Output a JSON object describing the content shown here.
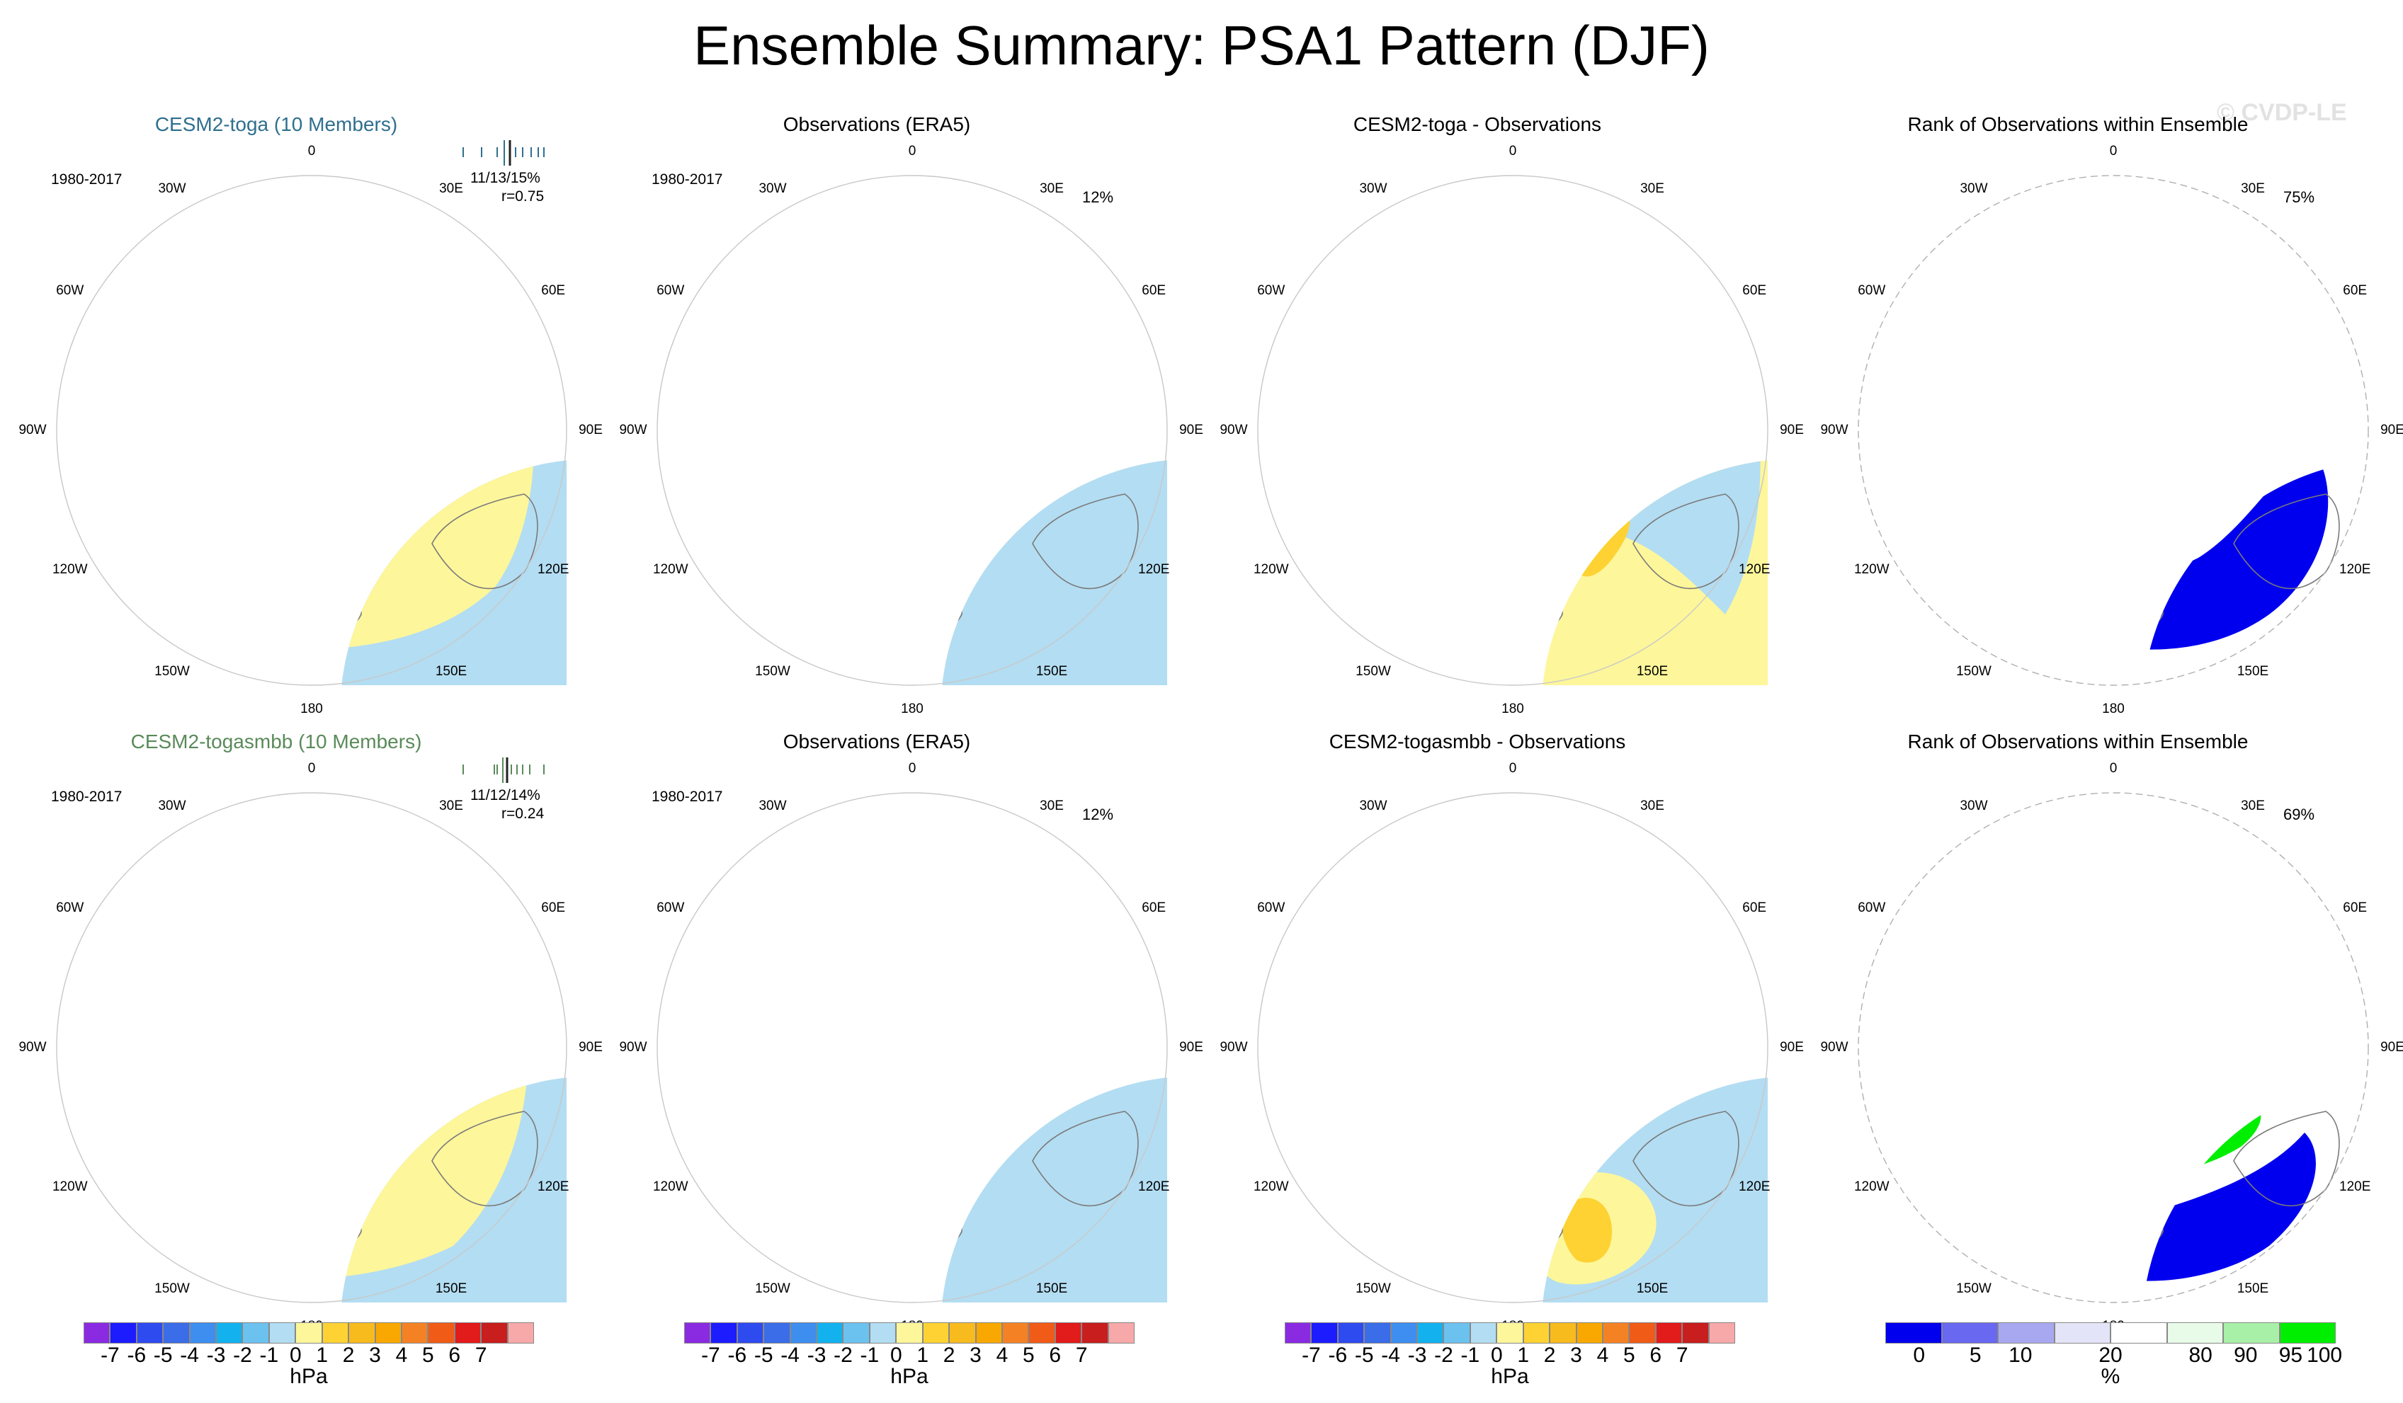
{
  "title": "Ensemble Summary: PSA1 Pattern (DJF)",
  "watermark": "© CVDP-LE",
  "colors": {
    "neg1": "#b3ddf2",
    "neg2": "#6cc2ef",
    "neg3": "#13b2ef",
    "pos1": "#fdf69b",
    "pos2": "#fdd232",
    "pos3": "#f8a800",
    "rank_low": "#0000ee",
    "rank_mid": "#e4e4f8",
    "rank_high": "#00ee00",
    "rank_highmid": "#e8fbe8"
  },
  "lon_labels": [
    "0",
    "30E",
    "60E",
    "90E",
    "120E",
    "150E",
    "180",
    "150W",
    "120W",
    "90W",
    "60W",
    "30W"
  ],
  "panels": [
    {
      "id": "r1c1",
      "title": "CESM2-toga (10 Members)",
      "title_color": "blue",
      "period": "1980-2017",
      "stat1": "11/13/15%",
      "stat2": "r=0.75",
      "kind": "mean"
    },
    {
      "id": "r1c2",
      "title": "Observations (ERA5)",
      "period": "1980-2017",
      "pct": "12%",
      "kind": "obs"
    },
    {
      "id": "r1c3",
      "title": "CESM2-toga - Observations",
      "kind": "diff1"
    },
    {
      "id": "r1c4",
      "title": "Rank of Observations within Ensemble",
      "pct": "75%",
      "kind": "rank1"
    },
    {
      "id": "r2c1",
      "title": "CESM2-togasmbb (10 Members)",
      "title_color": "green",
      "period": "1980-2017",
      "stat1": "11/12/14%",
      "stat2": "r=0.24",
      "kind": "mean2"
    },
    {
      "id": "r2c2",
      "title": "Observations (ERA5)",
      "period": "1980-2017",
      "pct": "12%",
      "kind": "obs"
    },
    {
      "id": "r2c3",
      "title": "CESM2-togasmbb - Observations",
      "kind": "diff2"
    },
    {
      "id": "r2c4",
      "title": "Rank of Observations within Ensemble",
      "pct": "69%",
      "kind": "rank2"
    }
  ],
  "colorbar_hpa": {
    "labels": [
      "-7",
      "-6",
      "-5",
      "-4",
      "-3",
      "-2",
      "-1",
      "0",
      "1",
      "2",
      "3",
      "4",
      "5",
      "6",
      "7"
    ],
    "unit": "hPa",
    "colors": [
      "#8a2be2",
      "#1c1cff",
      "#2e4bef",
      "#3b6de8",
      "#3e8ef0",
      "#13b2ef",
      "#6cc2ef",
      "#b3ddf2",
      "#fdf69b",
      "#fdd232",
      "#f8bb1e",
      "#f8a800",
      "#f48224",
      "#f05c18",
      "#e21b1b",
      "#c81e1e",
      "#f7a8a8"
    ]
  },
  "colorbar_rank": {
    "labels": [
      "0",
      "5",
      "10",
      "20",
      "80",
      "90",
      "95",
      "100"
    ],
    "unit": "%",
    "colors": [
      "#0000ee",
      "#6868f0",
      "#a8a8f0",
      "#e4e4f8",
      "#ffffff",
      "#e8fbe8",
      "#a8f0a8",
      "#00ee00"
    ]
  },
  "chart_data": [
    {
      "type": "heatmap",
      "title": "CESM2-toga (10 Members)",
      "projection": "south polar stereographic",
      "units": "hPa",
      "range": [
        -7,
        7
      ]
    },
    {
      "type": "heatmap",
      "title": "Observations (ERA5)",
      "units": "hPa",
      "range": [
        -7,
        7
      ]
    },
    {
      "type": "heatmap",
      "title": "CESM2-toga - Observations",
      "units": "hPa",
      "range": [
        -7,
        7
      ]
    },
    {
      "type": "heatmap",
      "title": "Rank of Observations within Ensemble",
      "units": "%",
      "range": [
        0,
        100
      ]
    },
    {
      "type": "heatmap",
      "title": "CESM2-togasmbb (10 Members)",
      "units": "hPa",
      "range": [
        -7,
        7
      ]
    },
    {
      "type": "heatmap",
      "title": "Observations (ERA5)",
      "units": "hPa",
      "range": [
        -7,
        7
      ]
    },
    {
      "type": "heatmap",
      "title": "CESM2-togasmbb - Observations",
      "units": "hPa",
      "range": [
        -7,
        7
      ]
    },
    {
      "type": "heatmap",
      "title": "Rank of Observations within Ensemble",
      "units": "%",
      "range": [
        0,
        100
      ]
    }
  ]
}
